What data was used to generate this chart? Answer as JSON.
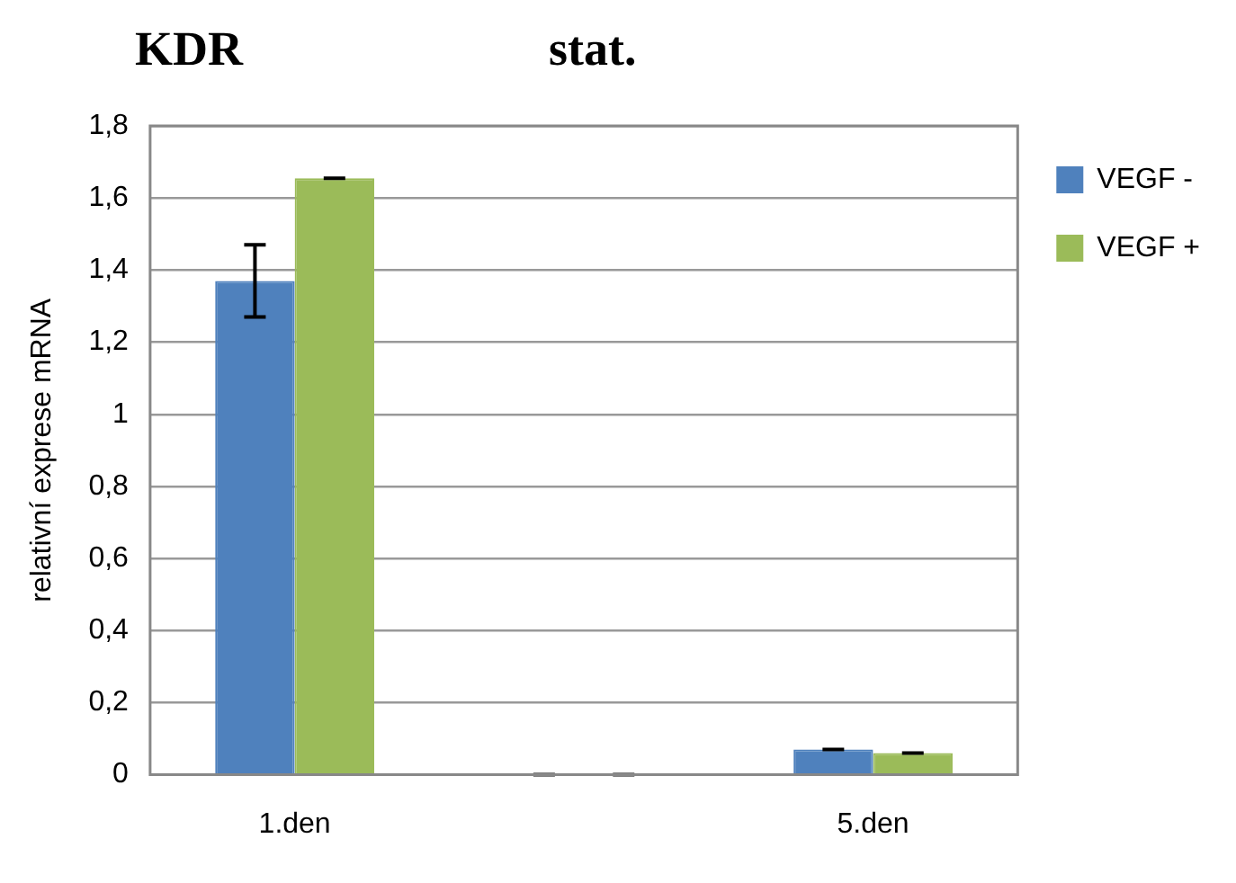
{
  "chart_data": {
    "type": "bar",
    "title": "KDR",
    "subtitle": "stat.",
    "ylabel": "relativní exprese mRNA",
    "categories": [
      "1.den",
      null,
      "5.den"
    ],
    "series": [
      {
        "name": "VEGF -",
        "color": "#4f81bd",
        "values": [
          1.37,
          0,
          0.07
        ],
        "errors": [
          [
            1.27,
            1.47
          ],
          0,
          0
        ]
      },
      {
        "name": "VEGF +",
        "color": "#9bbb59",
        "values": [
          1.655,
          0,
          0.06
        ],
        "errors": [
          0,
          0,
          0
        ]
      }
    ],
    "ylim": [
      0,
      1.8
    ],
    "yticks": [
      {
        "value": 0,
        "label": "0"
      },
      {
        "value": 0.2,
        "label": "0,2"
      },
      {
        "value": 0.4,
        "label": "0,4"
      },
      {
        "value": 0.6,
        "label": "0,6"
      },
      {
        "value": 0.8,
        "label": "0,8"
      },
      {
        "value": 1,
        "label": "1"
      },
      {
        "value": 1.2,
        "label": "1,2"
      },
      {
        "value": 1.4,
        "label": "1,4"
      },
      {
        "value": 1.6,
        "label": "1,6"
      },
      {
        "value": 1.8,
        "label": "1,8"
      }
    ],
    "grid": "y",
    "legend": "right"
  }
}
